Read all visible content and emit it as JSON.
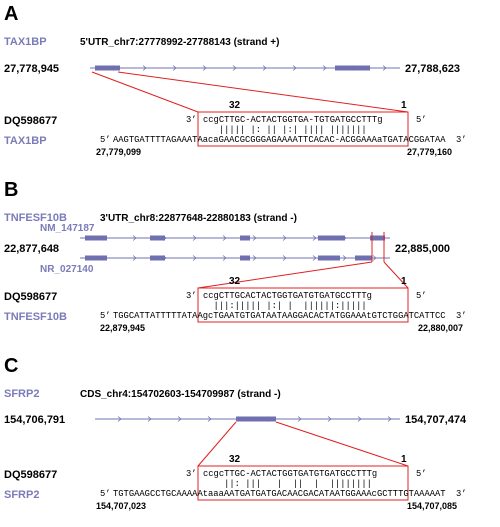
{
  "panels": [
    {
      "letter": "A",
      "gene": "TAX1BP",
      "region": "5'UTR_chr7:27778992-27788143 (strand +)",
      "start": "27,778,945",
      "end": "27,788,623",
      "mirna": "DQ598677",
      "mirna_start": "32",
      "mirna_end": "1",
      "mirna_seq": "ccgCTTGC-ACTACTGGTGA-TGTGATGCCTTTg",
      "pairing": "   ||||| |: || |:| |||| |||||||",
      "target_seq": "AAGTGATTTTAGAAATAacaGAACGCGGGAGAAAATTCACAC-ACGGAAAaTGATACGGATAA",
      "target_start": "27,779,099",
      "target_end": "27,779,160"
    },
    {
      "letter": "B",
      "gene": "TNFESF10B",
      "region": "3'UTR_chr8:22877648-22880183 (strand -)",
      "start": "22,877,648",
      "end": "22,885,000",
      "isoforms": [
        "NM_147187",
        "NR_027140"
      ],
      "mirna": "DQ598677",
      "mirna_start": "32",
      "mirna_end": "1",
      "mirna_seq": "ccgCTTGCACTACTGGTGATGTGATGCCTTTg",
      "pairing": "  |||:||||| |:| |  ||||||:|||||",
      "target_seq": "TGGCATTATTTTTATAAgcTGAATGTGATAATAAGGACACTATGGAAAtGTCTGGATCATTCC",
      "target_start": "22,879,945",
      "target_end": "22,880,007"
    },
    {
      "letter": "C",
      "gene": "SFRP2",
      "region": "CDS_chr4:154702603-154709987 (strand -)",
      "start": "154,706,791",
      "end": "154,707,474",
      "mirna": "DQ598677",
      "mirna_start": "32",
      "mirna_end": "1",
      "mirna_seq": "ccgcTTGC-ACTACTGGTGATGTGATGCCTTTg",
      "pairing": "    ||: |||   |  ||  |  ||||||||",
      "target_seq": "TGTGAAGCCTGCAAAAAtaaaAATGATGATGACAACGACATAATGGAAAcGCTTTGTAAAAAT",
      "target_start": "154,707,023",
      "target_end": "154,707,085"
    }
  ],
  "prime3": "3’",
  "prime5": "5’"
}
